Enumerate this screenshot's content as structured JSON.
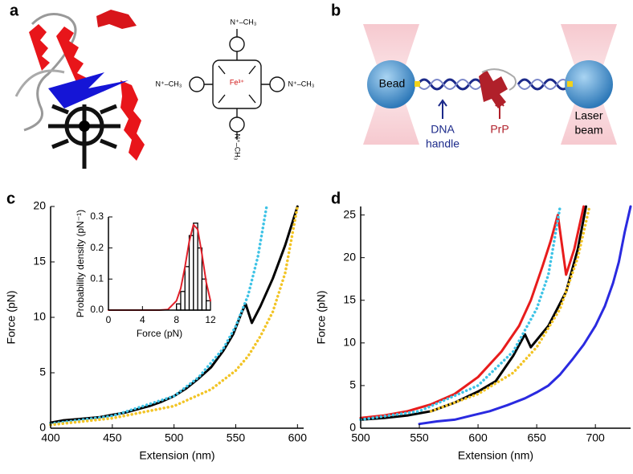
{
  "panels": {
    "a": {
      "label": "a",
      "chem_labels": [
        "N⁺–CH₃",
        "N⁺–CH₃",
        "N⁺–CH₃",
        "N⁺–CH₃"
      ],
      "metal": "Fe³⁺"
    },
    "b": {
      "label": "b",
      "bead": "Bead",
      "dna": [
        "DNA",
        "handle"
      ],
      "prp": "PrP",
      "laser": [
        "Laser",
        "beam"
      ]
    }
  },
  "chart_data": [
    {
      "type": "line",
      "panel_label": "c",
      "xlabel": "Extension (nm)",
      "ylabel": "Force (pN)",
      "xlim": [
        400,
        605
      ],
      "ylim": [
        0,
        20
      ],
      "xticks": [
        400,
        450,
        500,
        550,
        600
      ],
      "yticks": [
        0,
        5,
        10,
        15,
        20
      ],
      "series": [
        {
          "color": "#000000",
          "style": "solid",
          "x": [
            400,
            410,
            420,
            430,
            440,
            450,
            460,
            470,
            480,
            490,
            500,
            510,
            520,
            530,
            540,
            548,
            555,
            558,
            563,
            570,
            580,
            590,
            600
          ],
          "values": [
            0.5,
            0.7,
            0.8,
            0.9,
            1.0,
            1.2,
            1.4,
            1.7,
            2.0,
            2.4,
            2.9,
            3.6,
            4.5,
            5.5,
            7.0,
            8.5,
            10.5,
            11.2,
            9.5,
            11.0,
            13.5,
            16.5,
            20
          ]
        },
        {
          "color": "#3ec3e6",
          "style": "dotted",
          "x": [
            400,
            450,
            500,
            520,
            540,
            550,
            560,
            568,
            575
          ],
          "values": [
            0.4,
            1.1,
            2.9,
            4.6,
            7.2,
            9.2,
            12.0,
            15.5,
            20
          ]
        },
        {
          "color": "#f2c425",
          "style": "dotted",
          "x": [
            400,
            450,
            500,
            530,
            550,
            560,
            570,
            580,
            590,
            600
          ],
          "values": [
            0.3,
            0.9,
            2.0,
            3.5,
            5.2,
            6.5,
            8.3,
            10.5,
            14.0,
            20
          ]
        }
      ]
    },
    {
      "type": "histogram",
      "xlabel": "Force (pN)",
      "ylabel": "Probability density (pN⁻¹)",
      "xlim": [
        0,
        12
      ],
      "ylim": [
        0,
        0.3
      ],
      "xticks": [
        0,
        4,
        8,
        12
      ],
      "yticks": [
        {
          "value": 0,
          "label": "0.0"
        },
        0.1,
        0.2,
        0.3
      ],
      "bins": [
        8,
        8.5,
        9,
        9.5,
        10,
        10.5,
        11,
        11.5,
        12
      ],
      "values": [
        0.02,
        0.06,
        0.14,
        0.24,
        0.28,
        0.2,
        0.1,
        0.03
      ],
      "color": "#000000",
      "series": [
        {
          "color": "#e0202a",
          "style": "solid",
          "x": [
            0,
            6,
            7,
            8,
            8.5,
            9,
            9.5,
            10,
            10.5,
            11,
            11.5,
            12
          ],
          "values": [
            0,
            0,
            0.002,
            0.03,
            0.07,
            0.14,
            0.22,
            0.275,
            0.26,
            0.18,
            0.09,
            0.03
          ]
        }
      ]
    },
    {
      "type": "line",
      "panel_label": "d",
      "xlabel": "Extension (nm)",
      "ylabel": "Force (pN)",
      "xlim": [
        500,
        730
      ],
      "ylim": [
        0,
        26
      ],
      "xticks": [
        500,
        550,
        600,
        650,
        700
      ],
      "yticks": [
        0,
        5,
        10,
        15,
        20,
        25
      ],
      "series": [
        {
          "color": "#2a2ae0",
          "style": "solid",
          "x": [
            550,
            565,
            580,
            595,
            610,
            625,
            640,
            650,
            660,
            670,
            680,
            690,
            700,
            708,
            715,
            720,
            725,
            730
          ],
          "values": [
            0.5,
            0.8,
            1.0,
            1.5,
            2.0,
            2.7,
            3.5,
            4.2,
            5.0,
            6.3,
            8.0,
            9.8,
            12.0,
            14.3,
            17.0,
            19.5,
            23.0,
            26
          ]
        },
        {
          "color": "#e81c1c",
          "style": "solid",
          "x": [
            500,
            520,
            540,
            560,
            580,
            600,
            620,
            635,
            645,
            655,
            662,
            668,
            675,
            682,
            690
          ],
          "values": [
            1.2,
            1.5,
            2.0,
            2.8,
            4.0,
            6.0,
            9.0,
            12.0,
            15.0,
            19.0,
            22.0,
            25.0,
            18.0,
            21.0,
            26
          ]
        },
        {
          "color": "#000000",
          "style": "solid",
          "x": [
            500,
            520,
            540,
            560,
            580,
            600,
            615,
            630,
            640,
            645,
            660,
            675,
            685,
            692
          ],
          "values": [
            1.0,
            1.2,
            1.5,
            2.0,
            3.0,
            4.3,
            5.5,
            8.5,
            11.0,
            9.5,
            12.0,
            16.0,
            21.0,
            26
          ]
        },
        {
          "color": "#3ec3e6",
          "style": "dotted",
          "x": [
            500,
            550,
            600,
            630,
            650,
            660,
            670
          ],
          "values": [
            1.0,
            2.0,
            5.0,
            9.0,
            14.0,
            18.0,
            26
          ]
        },
        {
          "color": "#f2c425",
          "style": "dotted",
          "x": [
            560,
            600,
            630,
            650,
            670,
            685,
            695
          ],
          "values": [
            2.0,
            4.0,
            6.5,
            9.5,
            14.0,
            20.0,
            26
          ]
        }
      ]
    }
  ]
}
